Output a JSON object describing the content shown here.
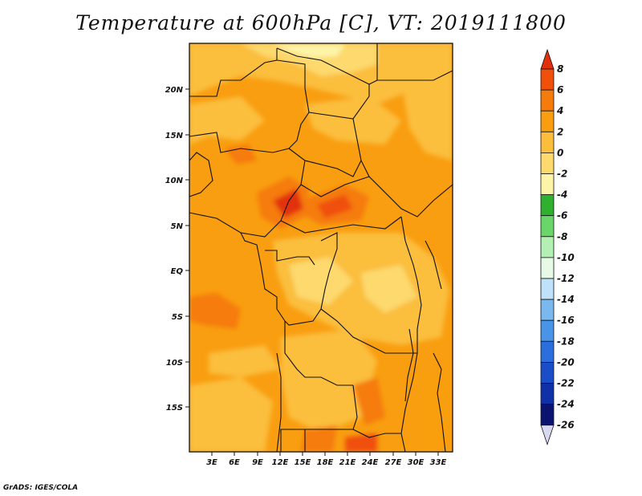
{
  "title": "Temperature at 600hPa [C], VT: 2019111800",
  "credit": "GrADS: IGES/COLA",
  "map": {
    "lon_ticks": [
      "3E",
      "6E",
      "9E",
      "12E",
      "15E",
      "18E",
      "21E",
      "24E",
      "27E",
      "30E",
      "33E"
    ],
    "lat_ticks": [
      "20N",
      "15N",
      "10N",
      "5N",
      "EQ",
      "5S",
      "10S",
      "15S"
    ]
  },
  "colorbar": {
    "labels": [
      "8",
      "6",
      "4",
      "2",
      "0",
      "-2",
      "-4",
      "-6",
      "-8",
      "-10",
      "-12",
      "-14",
      "-16",
      "-18",
      "-20",
      "-22",
      "-24",
      "-26"
    ],
    "colors": [
      "#e2300a",
      "#f0500a",
      "#f57c0a",
      "#f99e10",
      "#fbbe3c",
      "#fdd96e",
      "#fef4a8",
      "#2fb02f",
      "#6ad66a",
      "#b4f0b4",
      "#e6fae6",
      "#bfe2fa",
      "#7ab8f0",
      "#4a94e8",
      "#2a6fdc",
      "#1a4ec8",
      "#1030a8",
      "#0a1470",
      "#d8d8f0"
    ]
  }
}
